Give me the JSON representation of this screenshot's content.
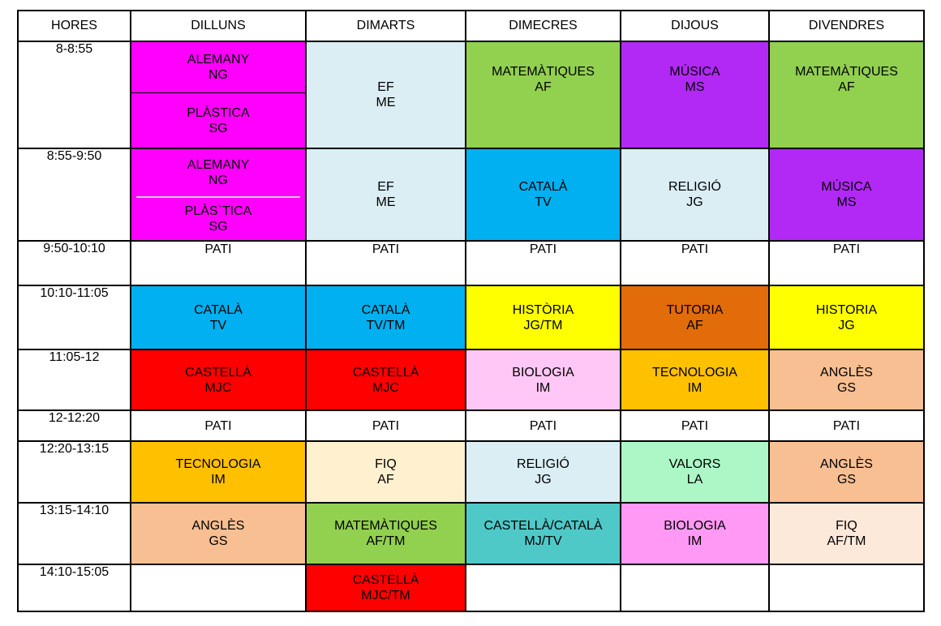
{
  "headers": [
    "HORES",
    "DILLUNS",
    "DIMARTS",
    "DIMECRES",
    "DIJOUS",
    "DIVENDRES"
  ],
  "rows": [
    {
      "time": "8-8:55",
      "cells": [
        {
          "split": true,
          "top": {
            "subject": "ALEMANY",
            "teacher": "NG"
          },
          "bottom": {
            "subject": "PLÀSTICA",
            "teacher": "SG"
          },
          "color": "#ff00ff"
        },
        {
          "subject": "EF",
          "teacher": "ME",
          "color": "#daeef3"
        },
        {
          "subject": "MATEMÀTIQUES",
          "teacher": "AF",
          "color": "#92d050",
          "align": "top"
        },
        {
          "subject": "MÚSICA",
          "teacher": "MS",
          "color": "#b229f5",
          "align": "top"
        },
        {
          "subject": "MATEMÀTIQUES",
          "teacher": "AF",
          "color": "#92d050",
          "align": "top"
        }
      ]
    },
    {
      "time": "8:55-9:50",
      "cells": [
        {
          "split": true,
          "separator": true,
          "top": {
            "subject": "ALEMANY",
            "teacher": "NG"
          },
          "bottom": {
            "subject": "PLÀS`TICA",
            "teacher": "SG"
          },
          "color": "#ff00ff"
        },
        {
          "subject": "EF",
          "teacher": "ME",
          "color": "#daeef3"
        },
        {
          "subject": "CATALÀ",
          "teacher": "TV",
          "color": "#00b0f0"
        },
        {
          "subject": "RELIGIÓ",
          "teacher": "JG",
          "color": "#daeef3"
        },
        {
          "subject": "MÚSICA",
          "teacher": "MS",
          "color": "#b229f5"
        }
      ]
    },
    {
      "time": "9:50-10:10",
      "cells": [
        {
          "subject": "PATI",
          "color": "#ffffff",
          "align": "top"
        },
        {
          "subject": "PATI",
          "color": "#ffffff",
          "align": "top"
        },
        {
          "subject": "PATI",
          "color": "#ffffff",
          "align": "top"
        },
        {
          "subject": "PATI",
          "color": "#ffffff",
          "align": "top"
        },
        {
          "subject": "PATI",
          "color": "#ffffff",
          "align": "top"
        }
      ]
    },
    {
      "time": "10:10-11:05",
      "cells": [
        {
          "subject": "CATALÀ",
          "teacher": "TV",
          "color": "#00b0f0"
        },
        {
          "subject": "CATALÀ",
          "teacher": "TV/TM",
          "color": "#00b0f0"
        },
        {
          "subject": "HISTÒRIA",
          "teacher": "JG/TM",
          "color": "#ffff00"
        },
        {
          "subject": "TUTORIA",
          "teacher": "AF",
          "color": "#e26b0a"
        },
        {
          "subject": "HISTORIA",
          "teacher": "JG",
          "color": "#ffff00"
        }
      ]
    },
    {
      "time": "11:05-12",
      "cells": [
        {
          "subject": "CASTELLÀ",
          "teacher": "MJC",
          "color": "#ff0000"
        },
        {
          "subject": "CASTELLÀ",
          "teacher": "MJC",
          "color": "#ff0000"
        },
        {
          "subject": "BIOLOGIA",
          "teacher": "IM",
          "color": "#ffc7f5"
        },
        {
          "subject": "TECNOLOGIA",
          "teacher": "IM",
          "color": "#ffc000"
        },
        {
          "subject": "ANGLÈS",
          "teacher": "GS",
          "color": "#f8bf92"
        }
      ]
    },
    {
      "time": "12-12:20",
      "cells": [
        {
          "subject": "PATI",
          "color": "#ffffff"
        },
        {
          "subject": "PATI",
          "color": "#ffffff"
        },
        {
          "subject": "PATI",
          "color": "#ffffff"
        },
        {
          "subject": "PATI",
          "color": "#ffffff"
        },
        {
          "subject": "PATI",
          "color": "#ffffff"
        }
      ]
    },
    {
      "time": "12:20-13:15",
      "cells": [
        {
          "subject": "TECNOLOGIA",
          "teacher": "IM",
          "color": "#ffc000"
        },
        {
          "subject": "FIQ",
          "teacher": "AF",
          "color": "#fff0cf"
        },
        {
          "subject": "RELIGIÓ",
          "teacher": "JG",
          "color": "#daeef3"
        },
        {
          "subject": "VALORS",
          "teacher": "LA",
          "color": "#adf7c6"
        },
        {
          "subject": "ANGLÈS",
          "teacher": "GS",
          "color": "#f8bf92"
        }
      ]
    },
    {
      "time": "13:15-14:10",
      "cells": [
        {
          "subject": "ANGLÈS",
          "teacher": "GS",
          "color": "#f8bf92"
        },
        {
          "subject": "MATEMÀTIQUES",
          "teacher": "AF/TM",
          "color": "#92d050"
        },
        {
          "subject": "CASTELLÀ/CATALÀ",
          "teacher": "MJ/TV",
          "color": "#4fc8c8"
        },
        {
          "subject": "BIOLOGIA",
          "teacher": "IM",
          "color": "#ff99f5"
        },
        {
          "subject": "FIQ",
          "teacher": "AF/TM",
          "color": "#fde9d9"
        }
      ]
    },
    {
      "time": "14:10-15:05",
      "cells": [
        {
          "subject": "",
          "color": "#ffffff"
        },
        {
          "subject": "CASTELLÀ",
          "teacher": "MJC/TM",
          "color": "#ff0000"
        },
        {
          "subject": "",
          "color": "#ffffff"
        },
        {
          "subject": "",
          "color": "#ffffff"
        },
        {
          "subject": "",
          "color": "#ffffff"
        }
      ]
    }
  ]
}
